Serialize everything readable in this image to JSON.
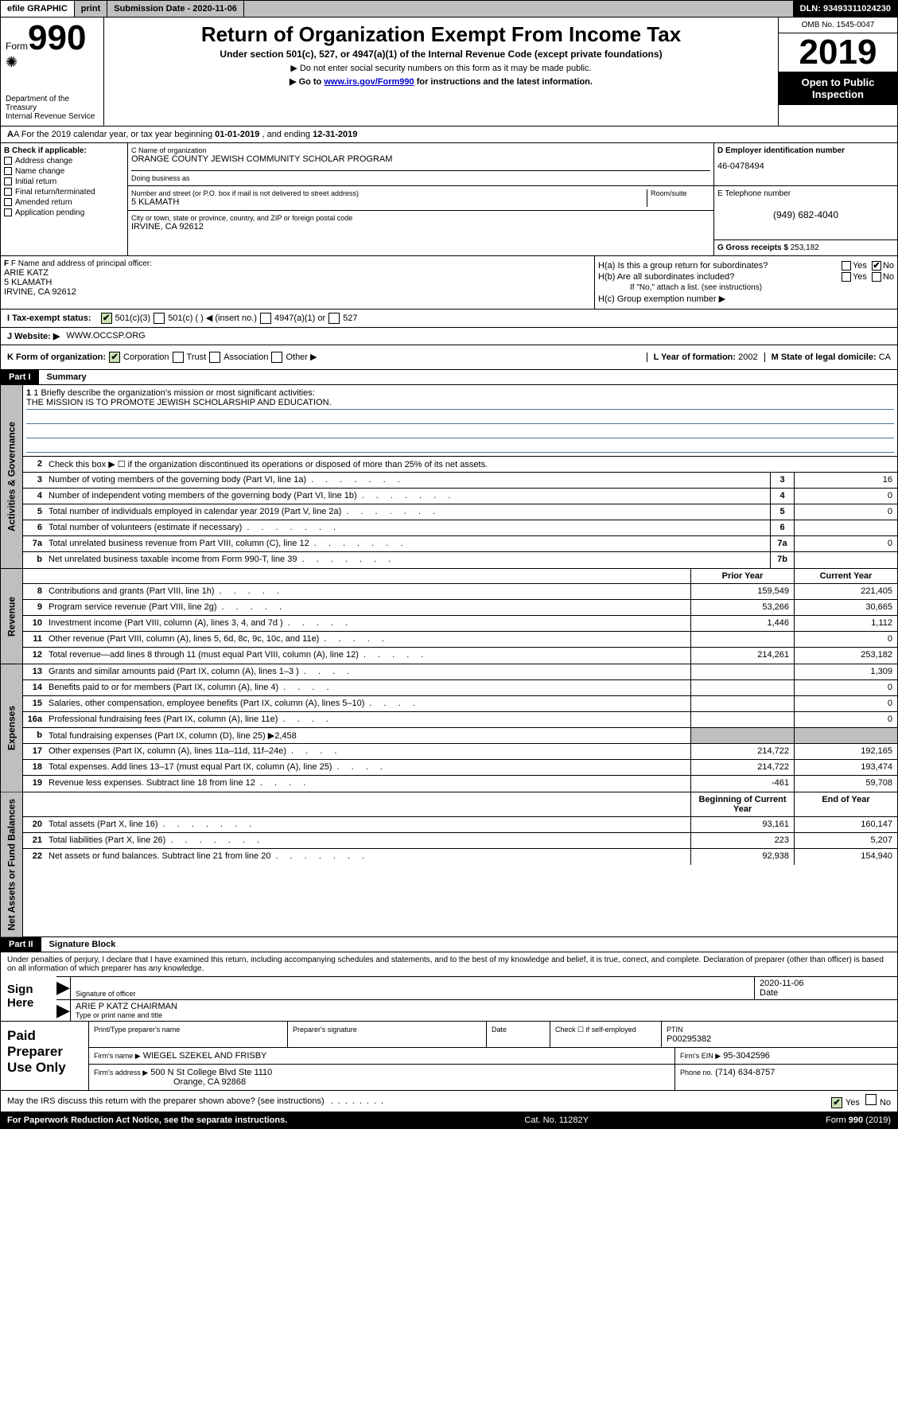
{
  "topbar": {
    "efile": "efile GRAPHIC",
    "print": "print",
    "submission_label": "Submission Date - 2020-11-06",
    "dln": "DLN: 93493311024230"
  },
  "header": {
    "form_prefix": "Form",
    "form_number": "990",
    "dept": "Department of the Treasury\nInternal Revenue Service",
    "title": "Return of Organization Exempt From Income Tax",
    "subtitle": "Under section 501(c), 527, or 4947(a)(1) of the Internal Revenue Code (except private foundations)",
    "note1": "▶ Do not enter social security numbers on this form as it may be made public.",
    "note2_pre": "▶ Go to ",
    "note2_link": "www.irs.gov/Form990",
    "note2_post": " for instructions and the latest information.",
    "omb": "OMB No. 1545-0047",
    "year": "2019",
    "open": "Open to Public Inspection"
  },
  "row_a": {
    "text_pre": "A For the 2019 calendar year, or tax year beginning ",
    "begin": "01-01-2019",
    "mid": " , and ending ",
    "end": "12-31-2019"
  },
  "section_b": {
    "label": "B Check if applicable:",
    "items": [
      "Address change",
      "Name change",
      "Initial return",
      "Final return/terminated",
      "Amended return",
      "Application pending"
    ]
  },
  "section_c": {
    "name_label": "C Name of organization",
    "name": "ORANGE COUNTY JEWISH COMMUNITY SCHOLAR PROGRAM",
    "dba_label": "Doing business as",
    "street_label": "Number and street (or P.O. box if mail is not delivered to street address)",
    "street": "5 KLAMATH",
    "room_label": "Room/suite",
    "city_label": "City or town, state or province, country, and ZIP or foreign postal code",
    "city": "IRVINE, CA  92612"
  },
  "section_d": {
    "label": "D Employer identification number",
    "value": "46-0478494"
  },
  "section_e": {
    "label": "E Telephone number",
    "value": "(949) 682-4040"
  },
  "section_g": {
    "label": "G Gross receipts $",
    "value": "253,182"
  },
  "section_f": {
    "label": "F Name and address of principal officer:",
    "name": "ARIE KATZ",
    "addr1": "5 KLAMATH",
    "addr2": "IRVINE, CA  92612"
  },
  "section_h": {
    "ha": "H(a)  Is this a group return for subordinates?",
    "hb": "H(b)  Are all subordinates included?",
    "hb_note": "If \"No,\" attach a list. (see instructions)",
    "hc": "H(c)  Group exemption number ▶",
    "yes": "Yes",
    "no": "No"
  },
  "row_i": {
    "label": "I  Tax-exempt status:",
    "opt1": "501(c)(3)",
    "opt2": "501(c) (   ) ◀ (insert no.)",
    "opt3": "4947(a)(1) or",
    "opt4": "527"
  },
  "row_j": {
    "label": "J  Website: ▶",
    "value": "WWW.OCCSP.ORG"
  },
  "row_k": {
    "label": "K Form of organization:",
    "opts": [
      "Corporation",
      "Trust",
      "Association",
      "Other ▶"
    ],
    "l_label": "L Year of formation:",
    "l_value": "2002",
    "m_label": "M State of legal domicile:",
    "m_value": "CA"
  },
  "part1": {
    "header": "Part I",
    "title": "Summary",
    "line1_label": "1  Briefly describe the organization's mission or most significant activities:",
    "line1_value": "THE MISSION IS TO PROMOTE JEWISH SCHOLARSHIP AND EDUCATION.",
    "line2": "Check this box ▶ ☐  if the organization discontinued its operations or disposed of more than 25% of its net assets.",
    "sections": {
      "governance": "Activities & Governance",
      "revenue": "Revenue",
      "expenses": "Expenses",
      "netassets": "Net Assets or Fund Balances"
    },
    "col_prior": "Prior Year",
    "col_current": "Current Year",
    "col_begin": "Beginning of Current Year",
    "col_end": "End of Year",
    "rows_gov": [
      {
        "n": "3",
        "d": "Number of voting members of the governing body (Part VI, line 1a)",
        "box": "3",
        "v": "16"
      },
      {
        "n": "4",
        "d": "Number of independent voting members of the governing body (Part VI, line 1b)",
        "box": "4",
        "v": "0"
      },
      {
        "n": "5",
        "d": "Total number of individuals employed in calendar year 2019 (Part V, line 2a)",
        "box": "5",
        "v": "0"
      },
      {
        "n": "6",
        "d": "Total number of volunteers (estimate if necessary)",
        "box": "6",
        "v": ""
      },
      {
        "n": "7a",
        "d": "Total unrelated business revenue from Part VIII, column (C), line 12",
        "box": "7a",
        "v": "0"
      },
      {
        "n": "b",
        "d": "Net unrelated business taxable income from Form 990-T, line 39",
        "box": "7b",
        "v": ""
      }
    ],
    "rows_rev": [
      {
        "n": "8",
        "d": "Contributions and grants (Part VIII, line 1h)",
        "p": "159,549",
        "c": "221,405"
      },
      {
        "n": "9",
        "d": "Program service revenue (Part VIII, line 2g)",
        "p": "53,266",
        "c": "30,665"
      },
      {
        "n": "10",
        "d": "Investment income (Part VIII, column (A), lines 3, 4, and 7d )",
        "p": "1,446",
        "c": "1,112"
      },
      {
        "n": "11",
        "d": "Other revenue (Part VIII, column (A), lines 5, 6d, 8c, 9c, 10c, and 11e)",
        "p": "",
        "c": "0"
      },
      {
        "n": "12",
        "d": "Total revenue—add lines 8 through 11 (must equal Part VIII, column (A), line 12)",
        "p": "214,261",
        "c": "253,182"
      }
    ],
    "rows_exp": [
      {
        "n": "13",
        "d": "Grants and similar amounts paid (Part IX, column (A), lines 1–3 )",
        "p": "",
        "c": "1,309"
      },
      {
        "n": "14",
        "d": "Benefits paid to or for members (Part IX, column (A), line 4)",
        "p": "",
        "c": "0"
      },
      {
        "n": "15",
        "d": "Salaries, other compensation, employee benefits (Part IX, column (A), lines 5–10)",
        "p": "",
        "c": "0"
      },
      {
        "n": "16a",
        "d": "Professional fundraising fees (Part IX, column (A), line 11e)",
        "p": "",
        "c": "0"
      },
      {
        "n": "b",
        "d": "Total fundraising expenses (Part IX, column (D), line 25) ▶2,458",
        "p": null,
        "c": null
      },
      {
        "n": "17",
        "d": "Other expenses (Part IX, column (A), lines 11a–11d, 11f–24e)",
        "p": "214,722",
        "c": "192,165"
      },
      {
        "n": "18",
        "d": "Total expenses. Add lines 13–17 (must equal Part IX, column (A), line 25)",
        "p": "214,722",
        "c": "193,474"
      },
      {
        "n": "19",
        "d": "Revenue less expenses. Subtract line 18 from line 12",
        "p": "-461",
        "c": "59,708"
      }
    ],
    "rows_net": [
      {
        "n": "20",
        "d": "Total assets (Part X, line 16)",
        "p": "93,161",
        "c": "160,147"
      },
      {
        "n": "21",
        "d": "Total liabilities (Part X, line 26)",
        "p": "223",
        "c": "5,207"
      },
      {
        "n": "22",
        "d": "Net assets or fund balances. Subtract line 21 from line 20",
        "p": "92,938",
        "c": "154,940"
      }
    ]
  },
  "part2": {
    "header": "Part II",
    "title": "Signature Block",
    "declaration": "Under penalties of perjury, I declare that I have examined this return, including accompanying schedules and statements, and to the best of my knowledge and belief, it is true, correct, and complete. Declaration of preparer (other than officer) is based on all information of which preparer has any knowledge.",
    "sign_here": "Sign Here",
    "sig_officer": "Signature of officer",
    "sig_date": "2020-11-06",
    "date_label": "Date",
    "officer_name": "ARIE P KATZ CHAIRMAN",
    "type_name": "Type or print name and title",
    "paid_label": "Paid Preparer Use Only",
    "prep_name_label": "Print/Type preparer's name",
    "prep_sig_label": "Preparer's signature",
    "prep_date_label": "Date",
    "check_self": "Check ☐ if self-employed",
    "ptin_label": "PTIN",
    "ptin": "P00295382",
    "firm_name_label": "Firm's name    ▶",
    "firm_name": "WIEGEL SZEKEL AND FRISBY",
    "firm_ein_label": "Firm's EIN ▶",
    "firm_ein": "95-3042596",
    "firm_addr_label": "Firm's address ▶",
    "firm_addr1": "500 N St College Blvd Ste 1110",
    "firm_addr2": "Orange, CA  92868",
    "phone_label": "Phone no.",
    "phone": "(714) 634-8757",
    "discuss": "May the IRS discuss this return with the preparer shown above? (see instructions)",
    "yes": "Yes",
    "no": "No"
  },
  "footer": {
    "paperwork": "For Paperwork Reduction Act Notice, see the separate instructions.",
    "cat": "Cat. No. 11282Y",
    "form": "Form 990 (2019)"
  }
}
